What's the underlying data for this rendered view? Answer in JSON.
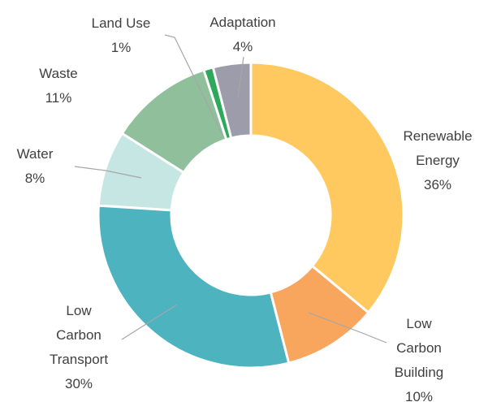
{
  "chart_data": {
    "type": "donut",
    "categories": [
      "Renewable Energy",
      "Low Carbon Building",
      "Low Carbon Transport",
      "Water",
      "Waste",
      "Land Use",
      "Adaptation"
    ],
    "values": [
      36,
      10,
      30,
      8,
      11,
      1,
      4
    ],
    "value_labels": [
      "36%",
      "10%",
      "30%",
      "8%",
      "11%",
      "1%",
      "4%"
    ],
    "colors": [
      "#ffc95f",
      "#f8a55e",
      "#4db3bf",
      "#c6e6e3",
      "#8fc09b",
      "#2ea85a",
      "#9c9caa"
    ]
  }
}
